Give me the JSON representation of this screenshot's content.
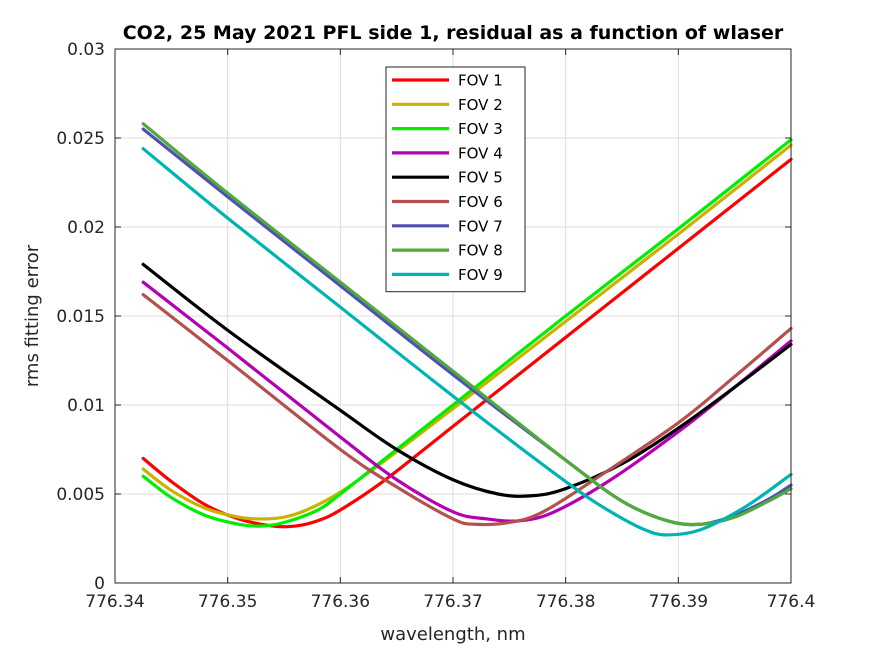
{
  "chart_data": {
    "type": "line",
    "title": "CO2, 25 May 2021 PFL side 1, residual as a function of wlaser",
    "xlabel": "wavelength, nm",
    "ylabel": "rms fitting error",
    "xlim": [
      776.34,
      776.4
    ],
    "ylim": [
      0,
      0.03
    ],
    "x_ticks": [
      "776.34",
      "776.35",
      "776.36",
      "776.37",
      "776.38",
      "776.39",
      "776.4"
    ],
    "y_ticks": [
      "0",
      "0.005",
      "0.01",
      "0.015",
      "0.02",
      "0.025",
      "0.03"
    ],
    "grid": true,
    "legend_position": "top-center",
    "series": [
      {
        "name": "FOV 1",
        "color": "#ff0000",
        "x": [
          776.3425,
          776.345,
          776.348,
          776.351,
          776.354,
          776.356,
          776.358,
          776.36,
          776.364,
          776.37,
          776.38,
          776.39,
          776.4
        ],
        "y": [
          0.007,
          0.0057,
          0.0044,
          0.0036,
          0.0032,
          0.0032,
          0.0035,
          0.0041,
          0.0058,
          0.0088,
          0.0138,
          0.0188,
          0.0238
        ]
      },
      {
        "name": "FOV 2",
        "color": "#c8b400",
        "x": [
          776.3425,
          776.345,
          776.348,
          776.351,
          776.353,
          776.355,
          776.357,
          776.36,
          776.364,
          776.37,
          776.38,
          776.39,
          776.4
        ],
        "y": [
          0.0064,
          0.0052,
          0.0042,
          0.0037,
          0.0036,
          0.0037,
          0.0041,
          0.0051,
          0.0069,
          0.0098,
          0.0147,
          0.0196,
          0.0246
        ]
      },
      {
        "name": "FOV 3",
        "color": "#00ee00",
        "x": [
          776.3425,
          776.345,
          776.348,
          776.351,
          776.353,
          776.355,
          776.358,
          776.36,
          776.364,
          776.37,
          776.38,
          776.39,
          776.4
        ],
        "y": [
          0.006,
          0.0048,
          0.0038,
          0.0033,
          0.0032,
          0.0034,
          0.0041,
          0.005,
          0.007,
          0.01,
          0.015,
          0.0199,
          0.0249
        ]
      },
      {
        "name": "FOV 4",
        "color": "#b400b4",
        "x": [
          776.3425,
          776.35,
          776.36,
          776.365,
          776.37,
          776.373,
          776.376,
          776.379,
          776.384,
          776.39,
          776.395,
          776.4
        ],
        "y": [
          0.0169,
          0.0132,
          0.0082,
          0.0058,
          0.004,
          0.0036,
          0.0035,
          0.004,
          0.0058,
          0.0085,
          0.011,
          0.0136
        ]
      },
      {
        "name": "FOV 5",
        "color": "#000000",
        "x": [
          776.3425,
          776.35,
          776.36,
          776.365,
          776.37,
          776.374,
          776.377,
          776.38,
          776.385,
          776.39,
          776.395,
          776.4
        ],
        "y": [
          0.0179,
          0.0142,
          0.0097,
          0.0075,
          0.0058,
          0.005,
          0.0049,
          0.0053,
          0.0067,
          0.0087,
          0.011,
          0.0134
        ]
      },
      {
        "name": "FOV 6",
        "color": "#b45050",
        "x": [
          776.3425,
          776.35,
          776.36,
          776.365,
          776.37,
          776.372,
          776.375,
          776.378,
          776.383,
          776.39,
          776.395,
          776.4
        ],
        "y": [
          0.0162,
          0.0125,
          0.0075,
          0.0054,
          0.0036,
          0.0033,
          0.0034,
          0.004,
          0.006,
          0.009,
          0.0116,
          0.0143
        ]
      },
      {
        "name": "FOV 7",
        "color": "#5050b4",
        "x": [
          776.3425,
          776.35,
          776.36,
          776.37,
          776.38,
          776.385,
          776.389,
          776.392,
          776.395,
          776.398,
          776.4
        ],
        "y": [
          0.0255,
          0.0217,
          0.0167,
          0.0117,
          0.0069,
          0.0046,
          0.0035,
          0.0033,
          0.0038,
          0.0047,
          0.0055
        ]
      },
      {
        "name": "FOV 8",
        "color": "#50aa3c",
        "x": [
          776.3425,
          776.35,
          776.36,
          776.37,
          776.38,
          776.385,
          776.389,
          776.392,
          776.395,
          776.398,
          776.4
        ],
        "y": [
          0.0258,
          0.0219,
          0.0169,
          0.0119,
          0.0069,
          0.0046,
          0.0035,
          0.0033,
          0.0037,
          0.0046,
          0.0053
        ]
      },
      {
        "name": "FOV 9",
        "color": "#00b4b4",
        "x": [
          776.3425,
          776.35,
          776.36,
          776.37,
          776.38,
          776.384,
          776.387,
          776.389,
          776.392,
          776.396,
          776.4
        ],
        "y": [
          0.0244,
          0.0205,
          0.0155,
          0.0105,
          0.0057,
          0.004,
          0.003,
          0.0027,
          0.003,
          0.0043,
          0.0061
        ]
      }
    ]
  }
}
